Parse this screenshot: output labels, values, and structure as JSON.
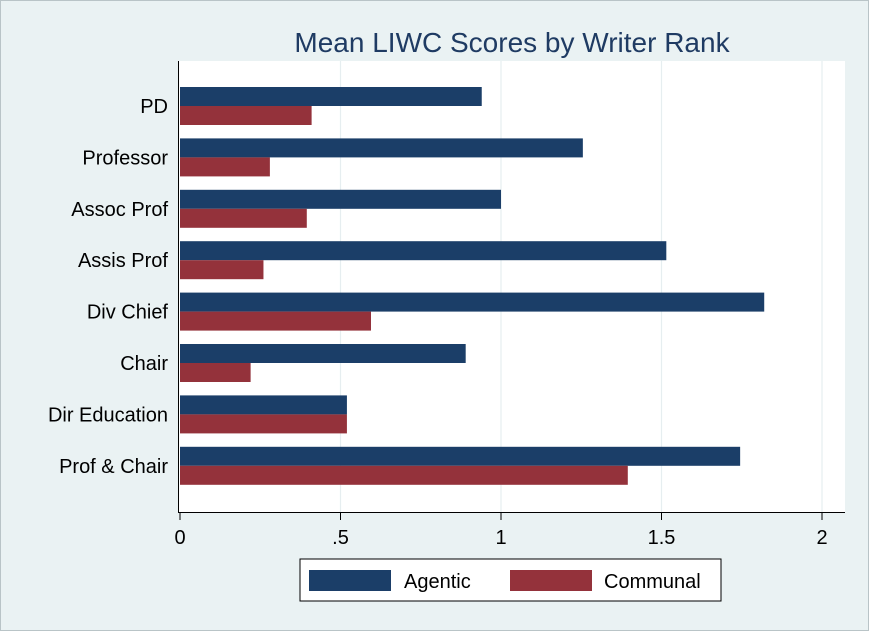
{
  "chart_data": {
    "type": "bar",
    "orientation": "horizontal",
    "title": "Mean LIWC Scores by Writer Rank",
    "categories": [
      "PD",
      "Professor",
      "Assoc Prof",
      "Assis Prof",
      "Div Chief",
      "Chair",
      "Dir Education",
      "Prof & Chair"
    ],
    "series": [
      {
        "name": "Agentic",
        "color": "#1b3e68",
        "values": [
          0.94,
          1.255,
          1.0,
          1.515,
          1.82,
          0.89,
          0.52,
          1.745
        ]
      },
      {
        "name": "Communal",
        "color": "#94323b",
        "values": [
          0.41,
          0.28,
          0.395,
          0.26,
          0.595,
          0.22,
          0.52,
          1.395
        ]
      }
    ],
    "x_ticks": [
      {
        "value": 0,
        "label": "0"
      },
      {
        "value": 0.5,
        "label": ".5"
      },
      {
        "value": 1,
        "label": "1"
      },
      {
        "value": 1.5,
        "label": "1.5"
      },
      {
        "value": 2,
        "label": "2"
      }
    ],
    "xlim": [
      0,
      2.07
    ],
    "xlabel": "",
    "ylabel": "",
    "grid": true,
    "legend_position": "bottom"
  }
}
